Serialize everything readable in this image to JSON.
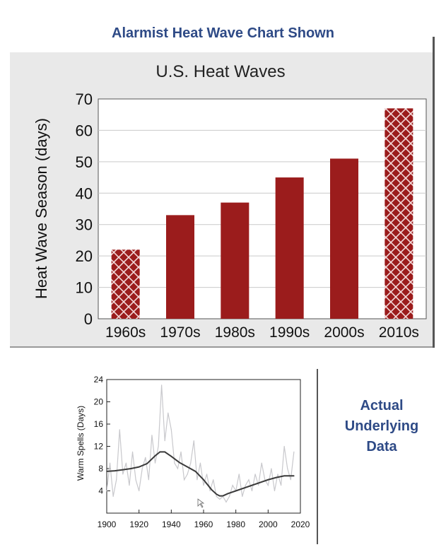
{
  "banner_title": "Alarmist Heat Wave Chart Shown",
  "side_note": [
    "Actual",
    "Underlying",
    "Data"
  ],
  "colors": {
    "banner": "#2e4a86",
    "bar": "#9b1c1c",
    "hatch": "#f3d9d9",
    "smooth_line": "#3a3a3a",
    "raw_line": "#c8c8cc"
  },
  "chart_data": [
    {
      "type": "bar",
      "title": "U.S. Heat Waves",
      "xlabel": "",
      "ylabel": "Heat Wave Season (days)",
      "categories": [
        "1960s",
        "1970s",
        "1980s",
        "1990s",
        "2000s",
        "2010s"
      ],
      "values": [
        22,
        33,
        37,
        45,
        51,
        67
      ],
      "hatched": [
        true,
        false,
        false,
        false,
        false,
        true
      ],
      "ylim": [
        0,
        70
      ],
      "yticks": [
        0,
        10,
        20,
        30,
        40,
        50,
        60,
        70
      ],
      "grid": "horizontal"
    },
    {
      "type": "line",
      "title": "",
      "xlabel": "",
      "ylabel": "Warm Spells (Days)",
      "xlim": [
        1900,
        2020
      ],
      "ylim": [
        0,
        24
      ],
      "xticks": [
        1900,
        1920,
        1940,
        1960,
        1980,
        2000,
        2020
      ],
      "yticks": [
        4,
        8,
        12,
        16,
        20,
        24
      ],
      "series": [
        {
          "role": "annual",
          "x": [
            1900,
            1902,
            1904,
            1906,
            1908,
            1910,
            1912,
            1914,
            1916,
            1918,
            1920,
            1922,
            1924,
            1926,
            1928,
            1930,
            1932,
            1934,
            1936,
            1938,
            1940,
            1942,
            1944,
            1946,
            1948,
            1950,
            1952,
            1954,
            1956,
            1958,
            1960,
            1962,
            1964,
            1966,
            1968,
            1970,
            1972,
            1974,
            1976,
            1978,
            1980,
            1982,
            1984,
            1986,
            1988,
            1990,
            1992,
            1994,
            1996,
            1998,
            2000,
            2002,
            2004,
            2006,
            2008,
            2010,
            2012,
            2014,
            2016
          ],
          "y": [
            4,
            9,
            3,
            6,
            15,
            7,
            9,
            5,
            11,
            6,
            4,
            8,
            10,
            6,
            14,
            9,
            12,
            23,
            13,
            18,
            15,
            9,
            8,
            11,
            6,
            7,
            9,
            13,
            6,
            9,
            5,
            7,
            4,
            6,
            3,
            2.5,
            3,
            2,
            3,
            5,
            4,
            7,
            3,
            5,
            6,
            4,
            7,
            5,
            9,
            6,
            5,
            8,
            4,
            7,
            5,
            12,
            8,
            6,
            11
          ]
        },
        {
          "role": "smoothed",
          "x": [
            1900,
            1905,
            1910,
            1915,
            1920,
            1925,
            1930,
            1933,
            1936,
            1940,
            1945,
            1950,
            1955,
            1960,
            1965,
            1968,
            1970,
            1972,
            1975,
            1980,
            1985,
            1990,
            1995,
            2000,
            2005,
            2010,
            2016
          ],
          "y": [
            7.5,
            7.6,
            7.8,
            8,
            8.3,
            8.9,
            10.3,
            11,
            11,
            10.2,
            9.1,
            8.3,
            7.5,
            6,
            4.2,
            3.4,
            3.1,
            3.1,
            3.5,
            4,
            4.5,
            5,
            5.5,
            6,
            6.4,
            6.7,
            6.7
          ]
        }
      ]
    }
  ]
}
